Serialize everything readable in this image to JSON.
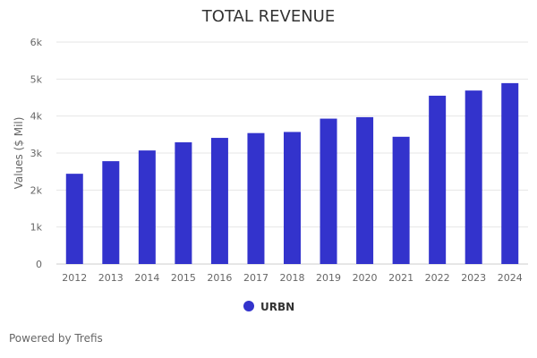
{
  "chart_data": {
    "type": "bar",
    "title": "TOTAL REVENUE",
    "xlabel": "",
    "ylabel": "Values ($ Mil)",
    "categories": [
      "2012",
      "2013",
      "2014",
      "2015",
      "2016",
      "2017",
      "2018",
      "2019",
      "2020",
      "2021",
      "2022",
      "2023",
      "2024"
    ],
    "series": [
      {
        "name": "URBN",
        "color": "#3333cc",
        "values": [
          2440,
          2780,
          3070,
          3290,
          3410,
          3540,
          3570,
          3930,
          3970,
          3440,
          4550,
          4690,
          4890
        ]
      }
    ],
    "ylim": [
      0,
      6000
    ],
    "yticks": [
      0,
      1000,
      2000,
      3000,
      4000,
      5000,
      6000
    ],
    "ytick_labels": [
      "0",
      "1k",
      "2k",
      "3k",
      "4k",
      "5k",
      "6k"
    ],
    "grid": true,
    "legend": "bottom-center"
  },
  "credit": "Powered by Trefis"
}
